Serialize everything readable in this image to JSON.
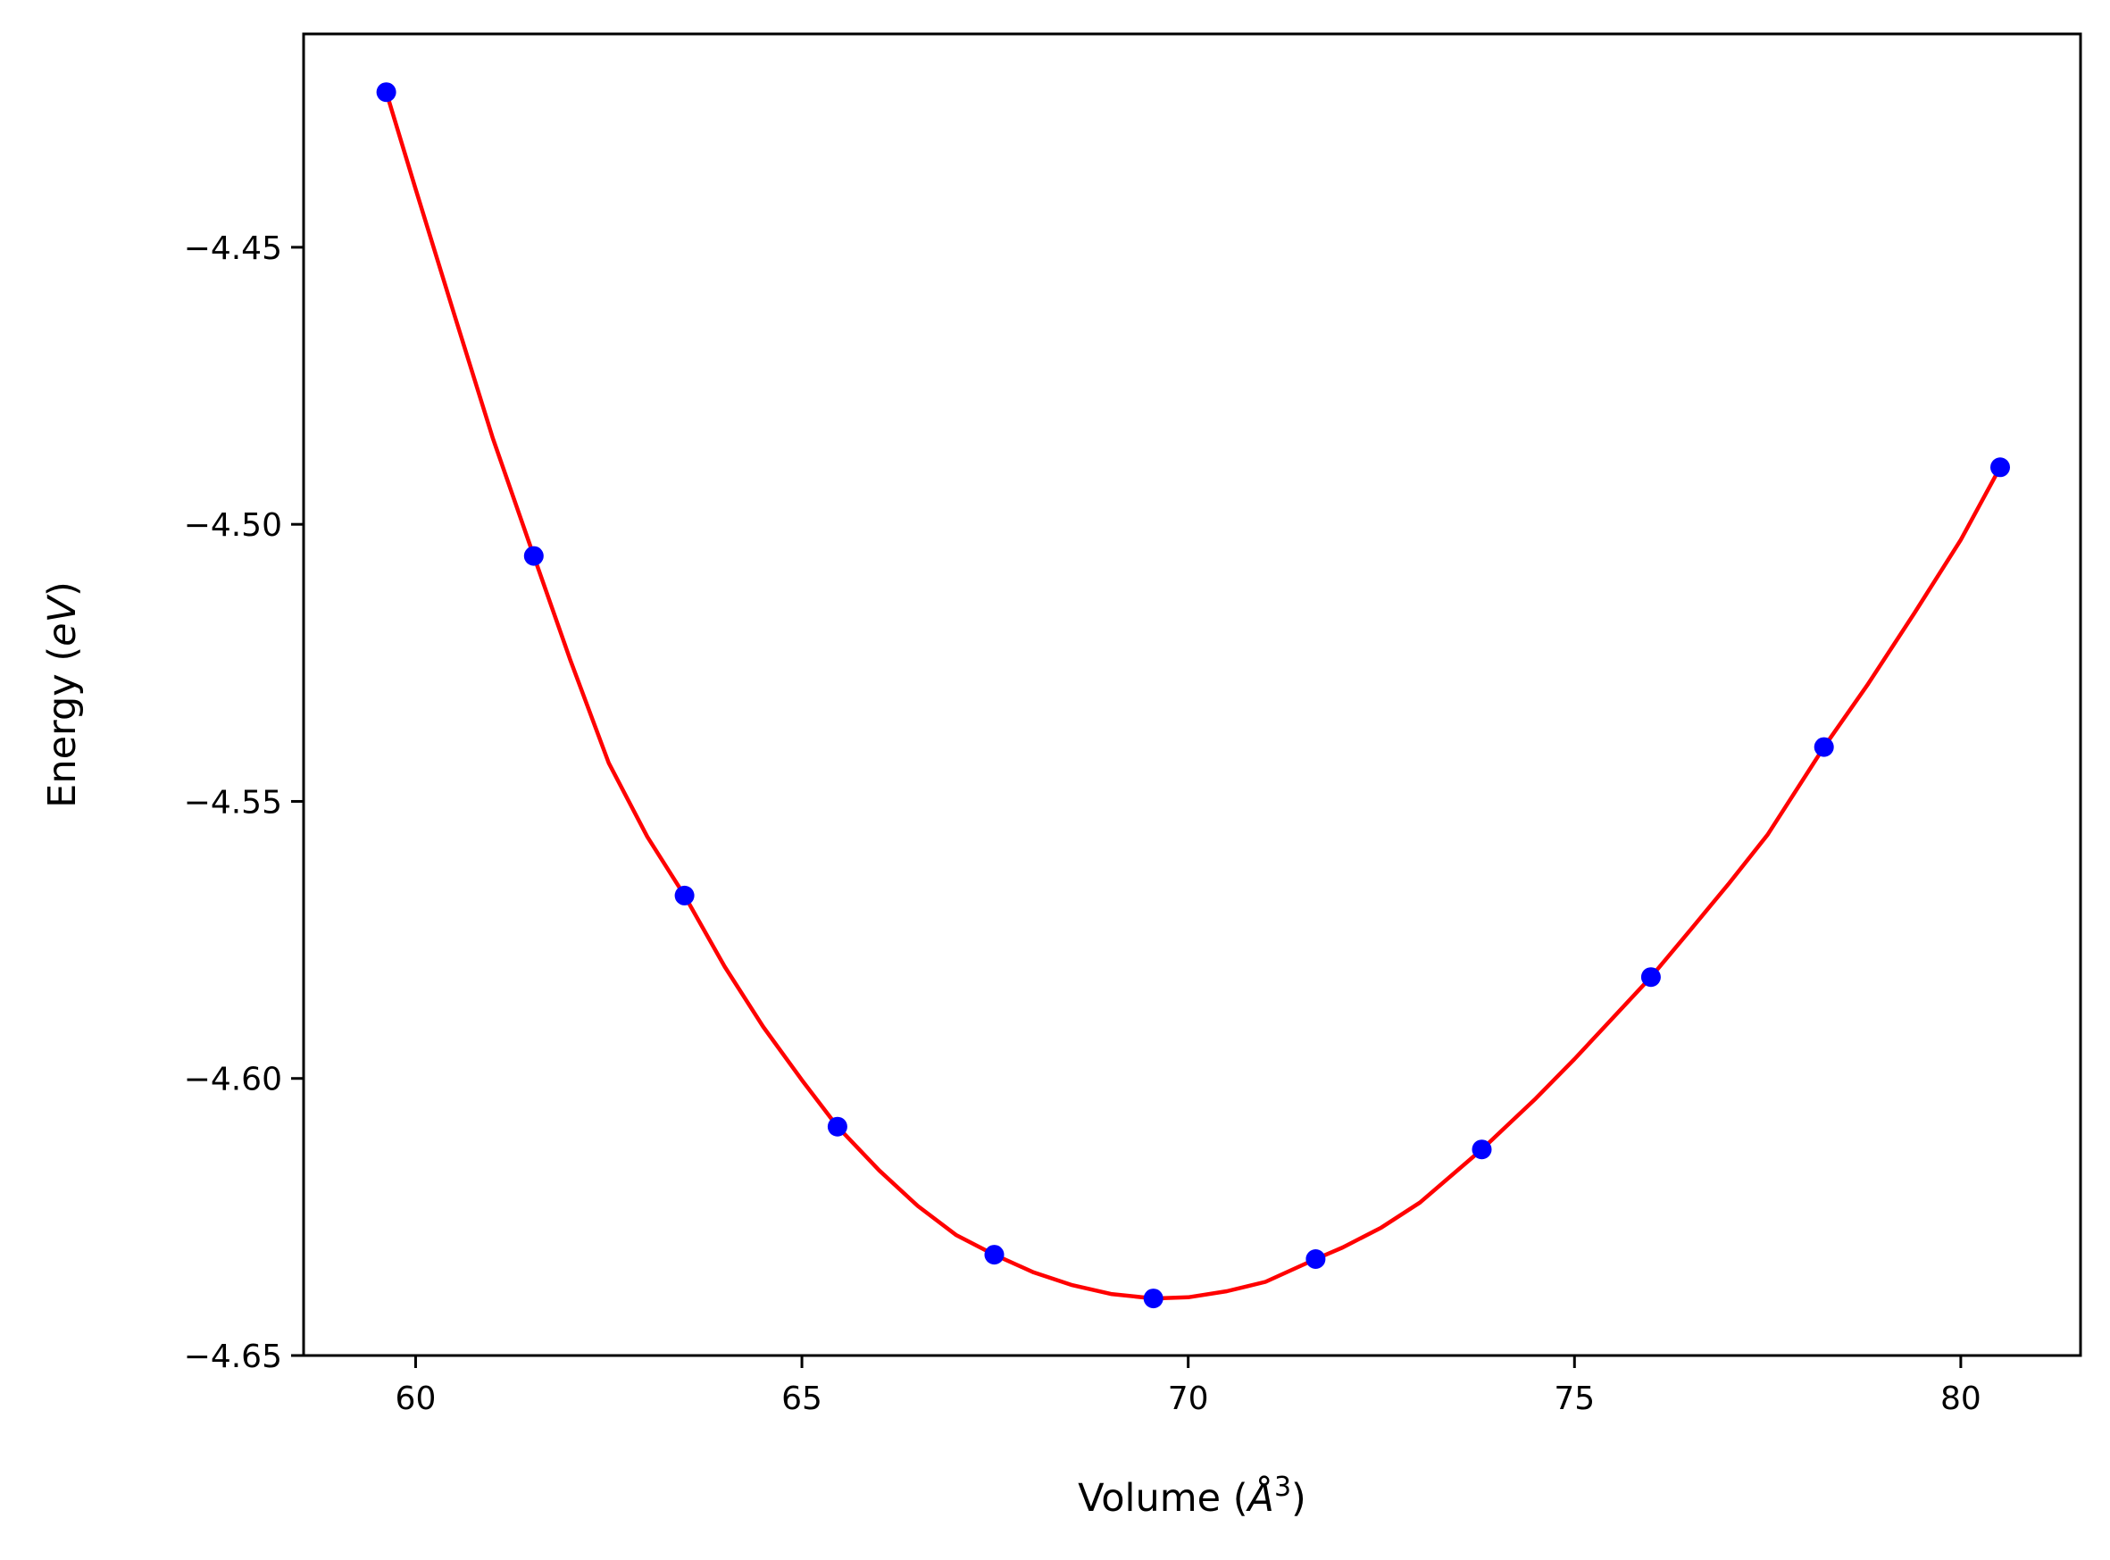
{
  "chart_data": {
    "type": "scatter",
    "title": "",
    "xlabel": {
      "pre": "Volume (",
      "sym": "Å",
      "sup": "3",
      "post": ")"
    },
    "ylabel": {
      "pre": "Energy (",
      "ital": "eV",
      "post": ")"
    },
    "xlim": [
      58.55,
      81.55
    ],
    "ylim": [
      -4.65,
      -4.4115
    ],
    "xticks": [
      60,
      65,
      70,
      75,
      80
    ],
    "xtick_labels": [
      "60",
      "65",
      "70",
      "75",
      "80"
    ],
    "yticks": [
      -4.45,
      -4.5,
      -4.55,
      -4.6,
      -4.65
    ],
    "ytick_labels": [
      "−4.45",
      "−4.50",
      "−4.55",
      "−4.60",
      "−4.65"
    ],
    "grid": false,
    "series": [
      {
        "kind": "points",
        "color": "#0000ff",
        "x": [
          59.62,
          61.53,
          63.48,
          65.46,
          67.49,
          69.55,
          71.65,
          73.8,
          75.99,
          78.23,
          80.51
        ],
        "y": [
          -4.422,
          -4.5057,
          -4.567,
          -4.6087,
          -4.6318,
          -4.6397,
          -4.6326,
          -4.6128,
          -4.5817,
          -4.5402,
          -4.4897
        ]
      },
      {
        "kind": "fit-curve",
        "color": "#ff0000",
        "x": [
          59.62,
          60.0,
          60.5,
          61.0,
          61.53,
          62.0,
          62.5,
          63.0,
          63.48,
          64.0,
          64.5,
          65.0,
          65.46,
          66.0,
          66.5,
          67.0,
          67.49,
          68.0,
          68.5,
          69.0,
          69.55,
          70.0,
          70.5,
          71.0,
          71.65,
          72.0,
          72.5,
          73.0,
          73.8,
          74.5,
          75.0,
          75.99,
          76.5,
          77.0,
          77.5,
          78.23,
          78.8,
          79.4,
          80.0,
          80.51
        ],
        "y": [
          -4.422,
          -4.4395,
          -4.4621,
          -4.4845,
          -4.5057,
          -4.5244,
          -4.5431,
          -4.5564,
          -4.567,
          -4.5798,
          -4.5907,
          -4.6003,
          -4.6087,
          -4.6166,
          -4.623,
          -4.6283,
          -4.6318,
          -4.635,
          -4.6373,
          -4.6389,
          -4.6397,
          -4.6395,
          -4.6384,
          -4.6367,
          -4.6326,
          -4.6305,
          -4.6269,
          -4.6224,
          -4.6128,
          -4.6036,
          -4.5965,
          -4.5817,
          -4.5732,
          -4.5648,
          -4.556,
          -4.5402,
          -4.5288,
          -4.516,
          -4.5028,
          -4.4897
        ]
      }
    ]
  }
}
